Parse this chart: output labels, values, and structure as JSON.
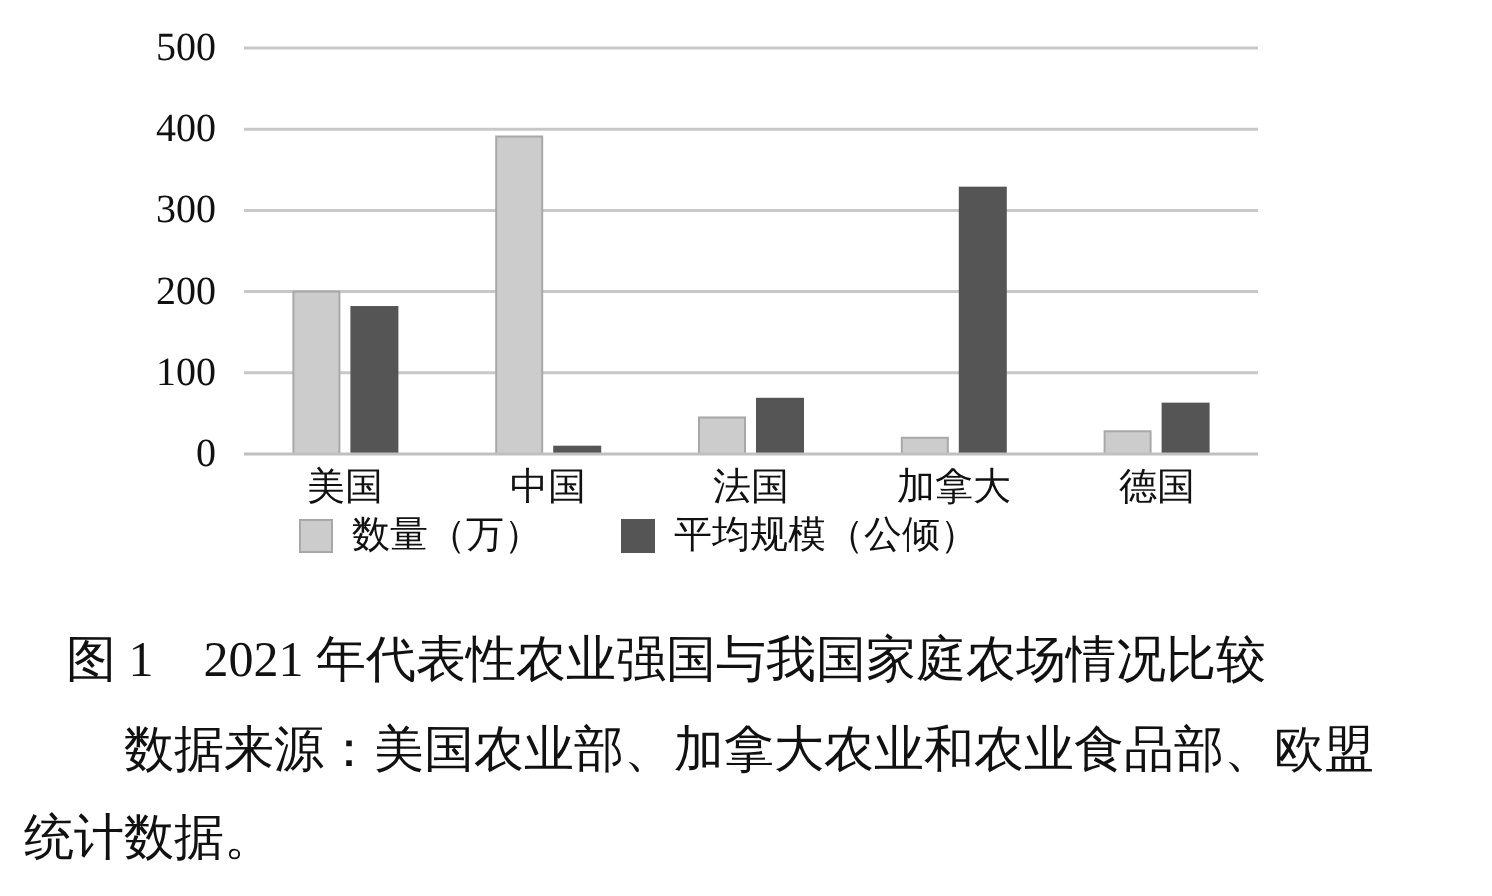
{
  "chart_data": {
    "type": "bar",
    "title": "图 1　2021 年代表性农业强国与我国家庭农场情况比较",
    "annotations": [
      "数据来源：美国农业部、加拿大农业和农业食品部、欧盟统计数据。"
    ],
    "categories": [
      "美国",
      "中国",
      "法国",
      "加拿大",
      "德国"
    ],
    "series": [
      {
        "name": "数量（万）",
        "color": "#cccccc",
        "values": [
          200,
          391,
          45,
          20,
          28
        ]
      },
      {
        "name": "平均规模（公倾）",
        "color": "#555555",
        "values": [
          181,
          9,
          68,
          328,
          62
        ]
      }
    ],
    "ylim": [
      0,
      500
    ],
    "yticks": [
      0,
      100,
      200,
      300,
      400,
      500
    ],
    "grid": "y",
    "legend": "bottom"
  }
}
